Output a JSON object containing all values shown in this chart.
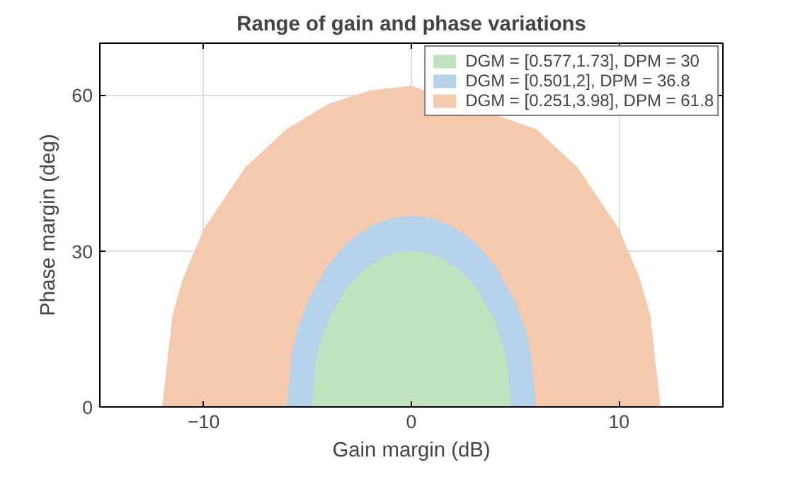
{
  "chart_data": {
    "type": "area",
    "title": "Range of gain and phase variations",
    "xlabel": "Gain margin (dB)",
    "ylabel": "Phase margin (deg)",
    "xlim": [
      -15,
      15
    ],
    "ylim": [
      0,
      70
    ],
    "xticks": [
      -10,
      0,
      10
    ],
    "yticks": [
      0,
      30,
      60
    ],
    "grid": true,
    "legend": "top right",
    "series": [
      {
        "name": "DGM = [0.577,1.73], DPM = 30",
        "color": "#c0e2bf",
        "x": [
          -4.8,
          -4.6,
          -4.4,
          -4.0,
          -3.2,
          -2.4,
          -1.6,
          -0.8,
          0,
          0.8,
          1.6,
          2.4,
          3.2,
          4.0,
          4.4,
          4.6,
          4.8
        ],
        "values": [
          0,
          8.6,
          12.0,
          16.6,
          22.4,
          26.0,
          28.3,
          29.6,
          30,
          29.6,
          28.3,
          26.0,
          22.4,
          16.6,
          12.0,
          8.6,
          0
        ]
      },
      {
        "name": "DGM = [0.501,2], DPM = 36.8",
        "color": "#b5d2ea",
        "x": [
          -6,
          -5.75,
          -5.5,
          -5,
          -4,
          -3,
          -2,
          -1,
          0,
          1,
          2,
          3,
          4,
          5,
          5.5,
          5.75,
          6
        ],
        "values": [
          0,
          10.5,
          14.7,
          20.3,
          27.4,
          31.9,
          34.7,
          36.3,
          36.8,
          36.3,
          34.7,
          31.9,
          27.4,
          20.3,
          14.7,
          10.5,
          0
        ]
      },
      {
        "name": "DGM = [0.251,3.98], DPM = 61.8",
        "color": "#f4c9ae",
        "x": [
          -12,
          -11.5,
          -11,
          -10,
          -8,
          -6,
          -4,
          -2,
          0,
          6,
          8,
          10,
          11,
          11.5,
          12
        ],
        "values": [
          0,
          17.7,
          24.7,
          34.2,
          46.1,
          53.5,
          58.3,
          60.9,
          61.8,
          53.5,
          46.1,
          34.2,
          24.7,
          17.7,
          0
        ]
      }
    ]
  }
}
